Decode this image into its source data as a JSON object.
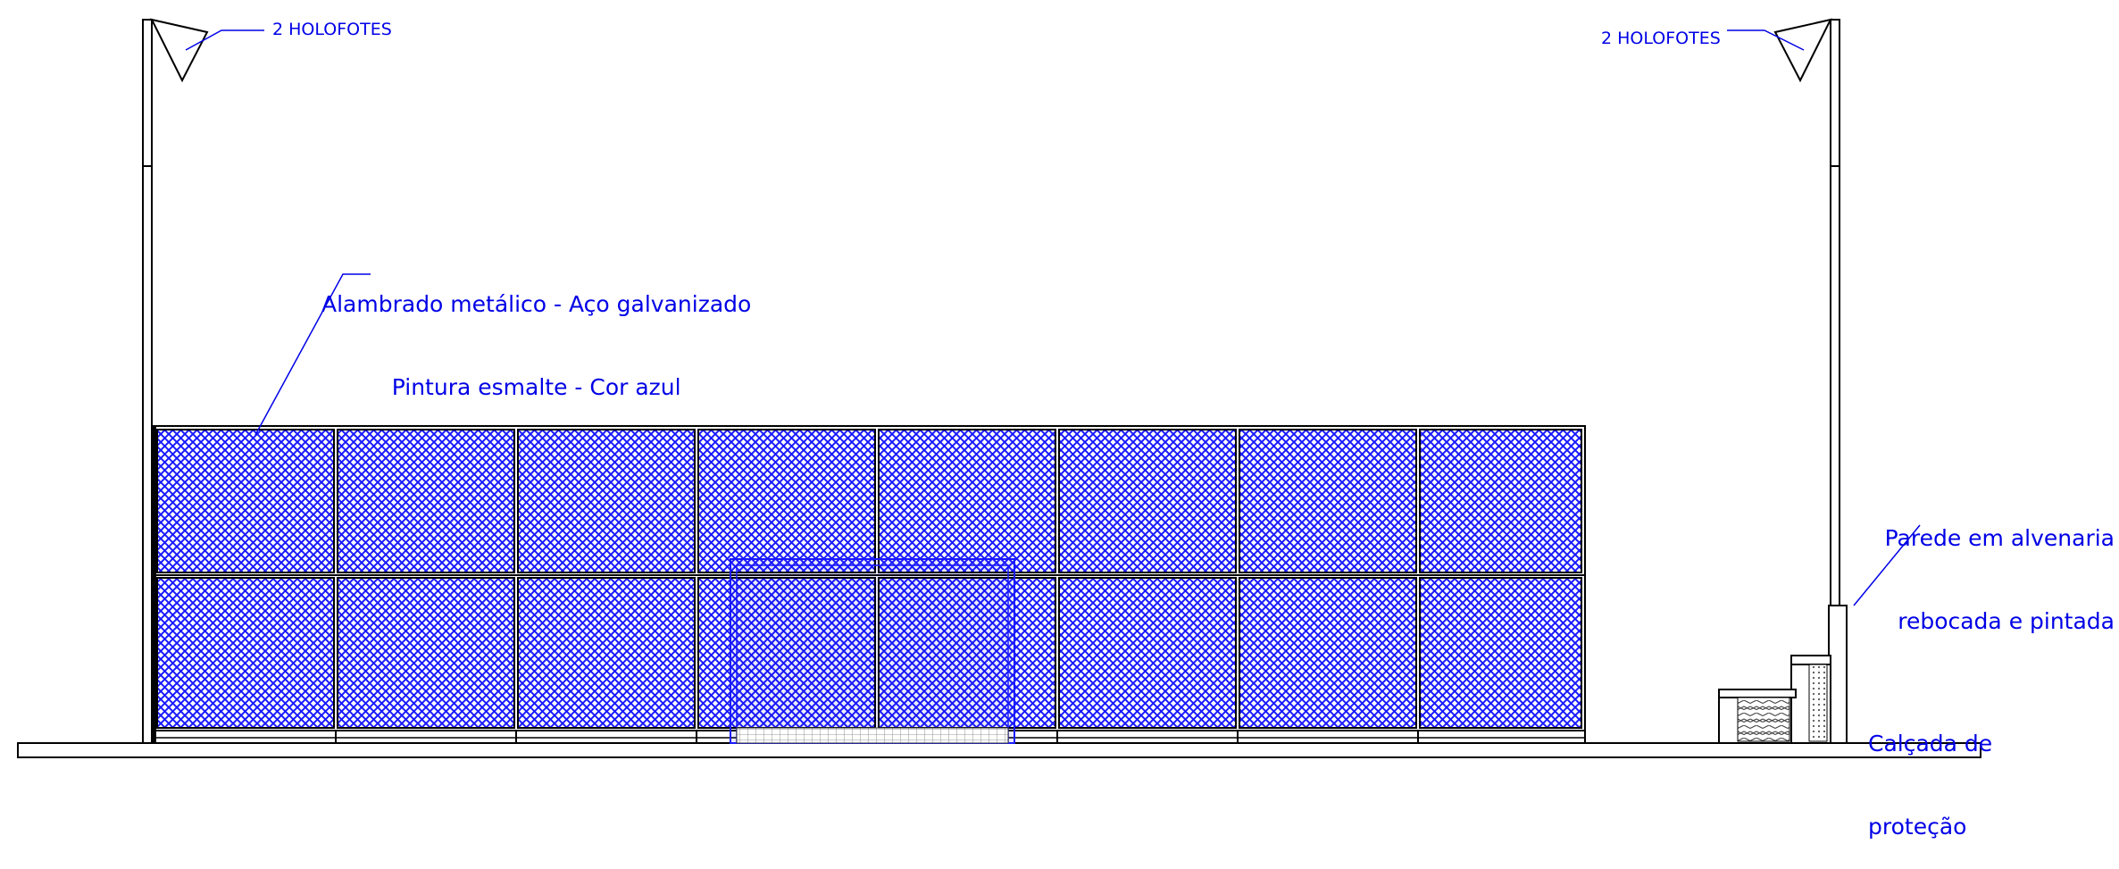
{
  "labels": {
    "floodlights_left": "2 HOLOFOTES",
    "floodlights_right": "2 HOLOFOTES",
    "fence_line1": "Alambrado metálico - Aço galvanizado",
    "fence_line2": "Pintura esmalte - Cor azul",
    "wall_line1": "Parede em alvenaria",
    "wall_line2": "rebocada e pintada",
    "sidewalk_line1": "Calçada de",
    "sidewalk_line2": "proteção"
  },
  "colors": {
    "annotation": "#0000e6",
    "mesh": "#1a1aff",
    "outline": "#000000"
  }
}
